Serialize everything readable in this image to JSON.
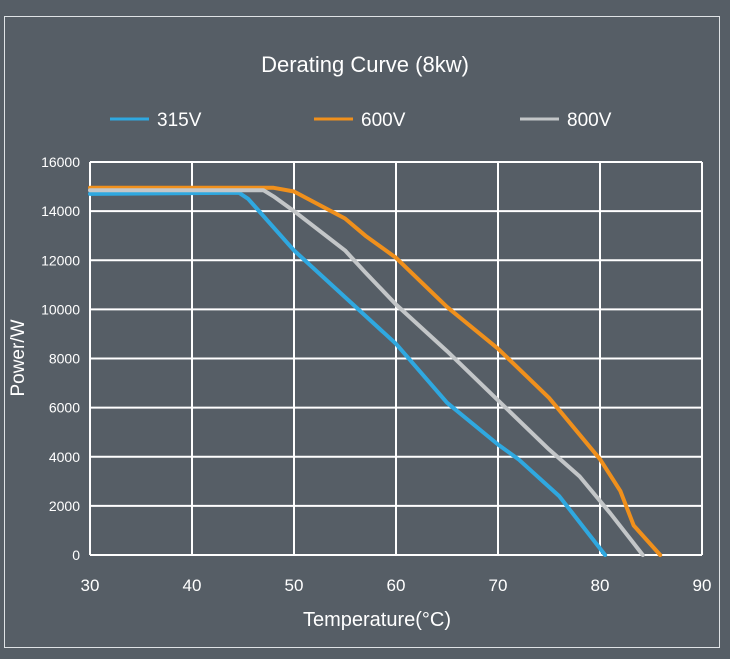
{
  "chart_data": {
    "type": "line",
    "title": "Derating Curve (8kw)",
    "xlabel": "Temperature(°C)",
    "ylabel": "Power/W",
    "xlim": [
      30,
      90
    ],
    "ylim": [
      0,
      16000
    ],
    "xticks": [
      30,
      40,
      50,
      60,
      70,
      80,
      90
    ],
    "yticks": [
      0,
      2000,
      4000,
      6000,
      8000,
      10000,
      12000,
      14000,
      16000
    ],
    "grid": true,
    "legend_position": "top",
    "series": [
      {
        "name": "315V",
        "color": "#2fa8e0",
        "points": [
          [
            30,
            14700
          ],
          [
            44.6,
            14750
          ],
          [
            45.5,
            14500
          ],
          [
            50,
            12400
          ],
          [
            55,
            10500
          ],
          [
            60,
            8600
          ],
          [
            65,
            6200
          ],
          [
            70,
            4500
          ],
          [
            72,
            3900
          ],
          [
            76,
            2400
          ],
          [
            80.5,
            0
          ]
        ]
      },
      {
        "name": "600V",
        "color": "#f0901c",
        "points": [
          [
            30,
            14950
          ],
          [
            48,
            14950
          ],
          [
            50,
            14800
          ],
          [
            55,
            13700
          ],
          [
            57,
            13000
          ],
          [
            60,
            12100
          ],
          [
            65,
            10100
          ],
          [
            70,
            8400
          ],
          [
            75,
            6400
          ],
          [
            80,
            3900
          ],
          [
            82,
            2600
          ],
          [
            83.3,
            1200
          ],
          [
            85.9,
            0
          ]
        ]
      },
      {
        "name": "800V",
        "color": "#c3c6c8",
        "points": [
          [
            30,
            14850
          ],
          [
            47,
            14850
          ],
          [
            48,
            14600
          ],
          [
            50,
            14000
          ],
          [
            55,
            12400
          ],
          [
            57,
            11500
          ],
          [
            60,
            10200
          ],
          [
            65,
            8300
          ],
          [
            70,
            6300
          ],
          [
            75,
            4300
          ],
          [
            78,
            3200
          ],
          [
            81,
            1700
          ],
          [
            84.2,
            0
          ]
        ]
      }
    ]
  }
}
